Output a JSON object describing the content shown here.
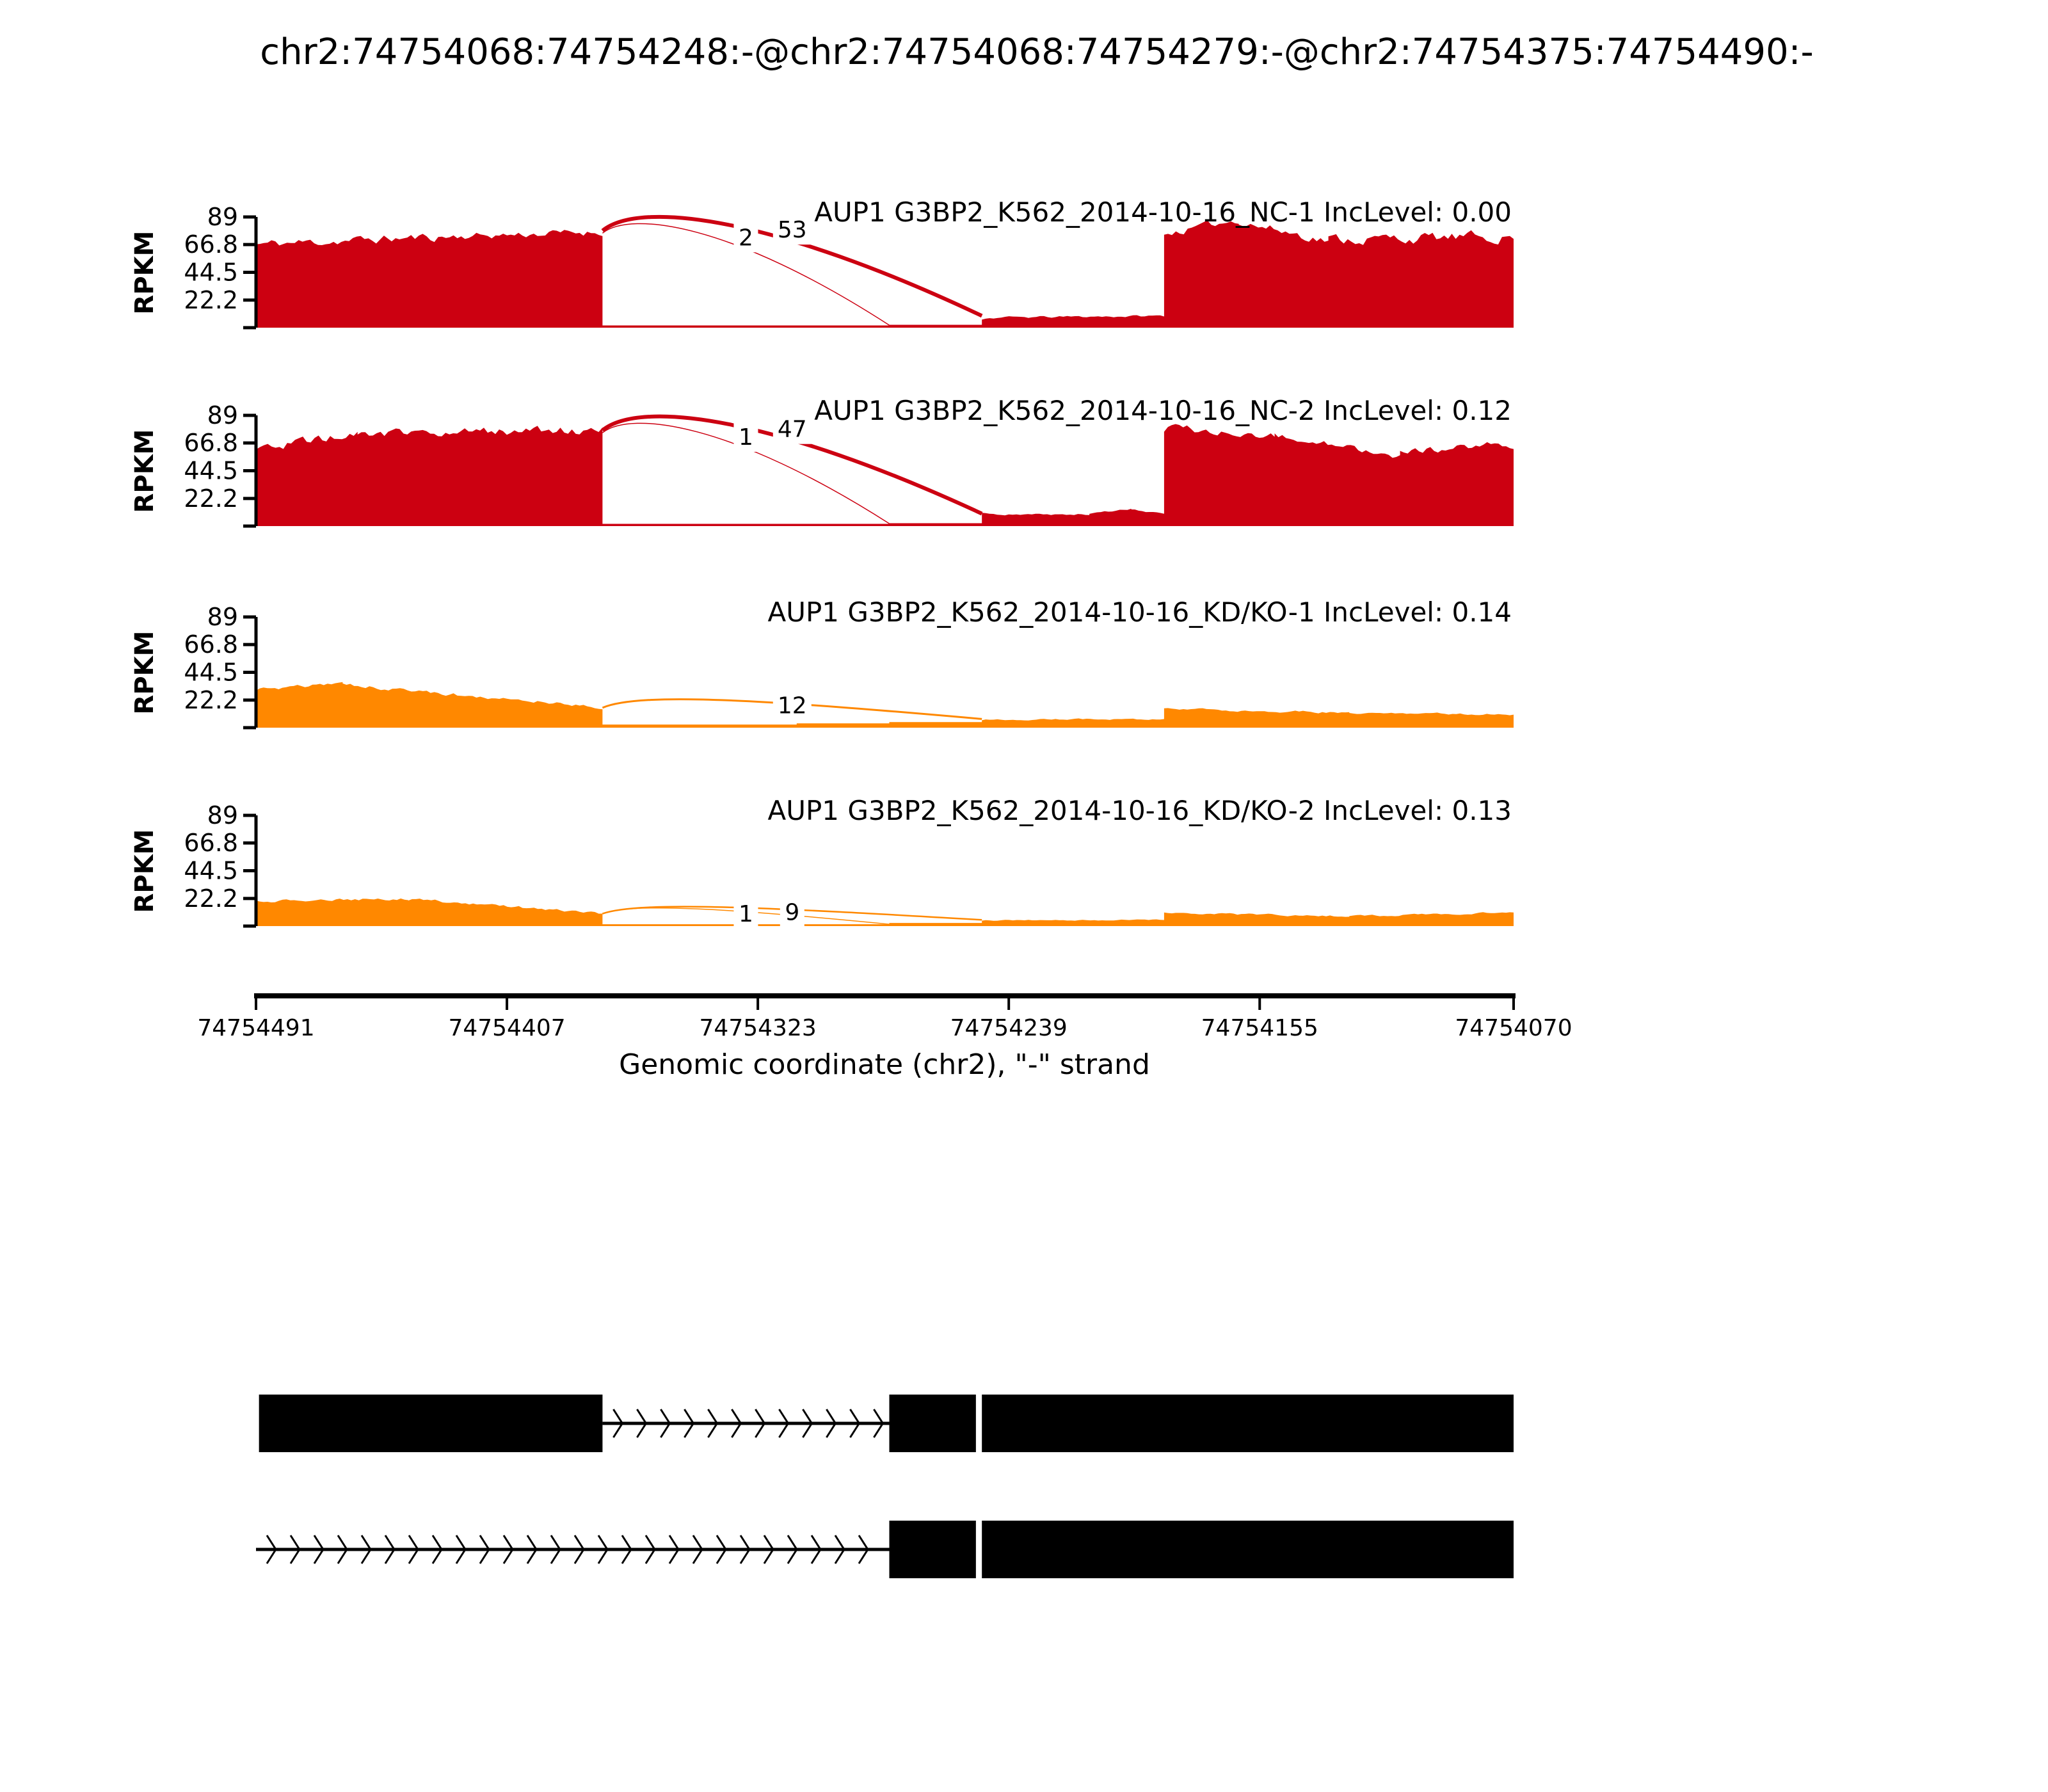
{
  "title": "chr2:74754068:74754248:-@chr2:74754068:74754279:-@chr2:74754375:74754490:-",
  "chart_data": {
    "type": "area",
    "subtype": "sashimi-splicing-plot",
    "xlabel": "Genomic coordinate (chr2), \"-\" strand",
    "ylabel": "RPKM",
    "strand": "-",
    "x_axis": {
      "start": 74754491,
      "end": 74754070,
      "ticks": [
        74754491,
        74754407,
        74754323,
        74754239,
        74754155,
        74754070
      ]
    },
    "y_ticks": [
      89,
      66.8,
      44.5,
      22.2
    ],
    "y_max": 89,
    "tracks": [
      {
        "label": "AUP1 G3BP2_K562_2014-10-16_NC-1 IncLevel: 0.00",
        "inc_level": "0.00",
        "color": "#CC0011",
        "coverage": [
          [
            74754491,
            74754430,
            67,
            73,
            5
          ],
          [
            74754430,
            74754375,
            73,
            77,
            4
          ],
          [
            74754375,
            74754279,
            1.8,
            1.8,
            0
          ],
          [
            74754279,
            74754248,
            2.3,
            2.3,
            0
          ],
          [
            74754248,
            74754187,
            8,
            9.5,
            1.2
          ],
          [
            74754187,
            74754162,
            75,
            87,
            4
          ],
          [
            74754162,
            74754132,
            85,
            70,
            5
          ],
          [
            74754132,
            74754070,
            71,
            73,
            6
          ]
        ],
        "junctions": [
          {
            "from": 74754375,
            "to": 74754279,
            "count": 2,
            "h1": 76,
            "h2": 2,
            "sw": 1.5,
            "raise": 22
          },
          {
            "from": 74754375,
            "to": 74754248,
            "count": 53,
            "h1": 78,
            "h2": 9.5,
            "sw": 6,
            "raise": 30
          }
        ]
      },
      {
        "label": "AUP1 G3BP2_K562_2014-10-16_NC-2 IncLevel: 0.12",
        "inc_level": "0.12",
        "color": "#CC0011",
        "coverage": [
          [
            74754491,
            74754457,
            62,
            74,
            5
          ],
          [
            74754457,
            74754375,
            74,
            77,
            5
          ],
          [
            74754375,
            74754279,
            1.8,
            1.8,
            0
          ],
          [
            74754279,
            74754248,
            2.3,
            2.3,
            0
          ],
          [
            74754248,
            74754212,
            9,
            9.5,
            1
          ],
          [
            74754212,
            74754198,
            10,
            14,
            1
          ],
          [
            74754198,
            74754187,
            13,
            10,
            1
          ],
          [
            74754187,
            74754150,
            78,
            73,
            5
          ],
          [
            74754150,
            74754108,
            73,
            57,
            4
          ],
          [
            74754108,
            74754070,
            59,
            66,
            4
          ]
        ],
        "junctions": [
          {
            "from": 74754375,
            "to": 74754279,
            "count": 1,
            "h1": 75,
            "h2": 2,
            "sw": 1.5,
            "raise": 22
          },
          {
            "from": 74754375,
            "to": 74754248,
            "count": 47,
            "h1": 77,
            "h2": 10,
            "sw": 6,
            "raise": 30
          }
        ]
      },
      {
        "label": "AUP1 G3BP2_K562_2014-10-16_KD/KO-1 IncLevel: 0.14",
        "inc_level": "0.14",
        "color": "#FF8800",
        "coverage": [
          [
            74754491,
            74754462,
            31,
            35,
            2
          ],
          [
            74754462,
            74754375,
            35,
            16,
            2
          ],
          [
            74754375,
            74754310,
            2.5,
            2.5,
            0
          ],
          [
            74754310,
            74754279,
            3.5,
            3.5,
            0
          ],
          [
            74754279,
            74754248,
            4.5,
            4.5,
            0
          ],
          [
            74754248,
            74754187,
            6.5,
            7,
            0.8
          ],
          [
            74754187,
            74754125,
            15,
            12,
            1.2
          ],
          [
            74754125,
            74754070,
            12,
            10.5,
            1
          ]
        ],
        "junctions": [
          {
            "from": 74754375,
            "to": 74754248,
            "count": 12,
            "h1": 16,
            "h2": 7,
            "sw": 3,
            "raise": 16
          }
        ]
      },
      {
        "label": "AUP1 G3BP2_K562_2014-10-16_KD/KO-2 IncLevel: 0.13",
        "inc_level": "0.13",
        "color": "#FF8800",
        "coverage": [
          [
            74754491,
            74754440,
            20,
            22,
            1.5
          ],
          [
            74754440,
            74754375,
            22,
            10,
            1.5
          ],
          [
            74754375,
            74754279,
            1.5,
            1.5,
            0
          ],
          [
            74754279,
            74754248,
            2.5,
            2.5,
            0
          ],
          [
            74754248,
            74754187,
            4.5,
            5,
            0.6
          ],
          [
            74754187,
            74754125,
            10.5,
            8,
            1
          ],
          [
            74754125,
            74754070,
            8,
            11,
            1
          ]
        ],
        "junctions": [
          {
            "from": 74754375,
            "to": 74754279,
            "count": 1,
            "h1": 10,
            "h2": 1.5,
            "sw": 1.5,
            "raise": 11
          },
          {
            "from": 74754375,
            "to": 74754248,
            "count": 9,
            "h1": 10,
            "h2": 5,
            "sw": 2.5,
            "raise": 13
          }
        ]
      }
    ],
    "transcripts": [
      {
        "exons": [
          [
            74754490,
            74754375
          ],
          [
            74754279,
            74754250
          ],
          [
            74754248,
            74754068
          ]
        ],
        "introns": [
          [
            74754375,
            74754279
          ]
        ]
      },
      {
        "exons": [
          [
            74754279,
            74754250
          ],
          [
            74754248,
            74754068
          ]
        ],
        "introns": [
          [
            74754491,
            74754279
          ]
        ]
      }
    ]
  }
}
